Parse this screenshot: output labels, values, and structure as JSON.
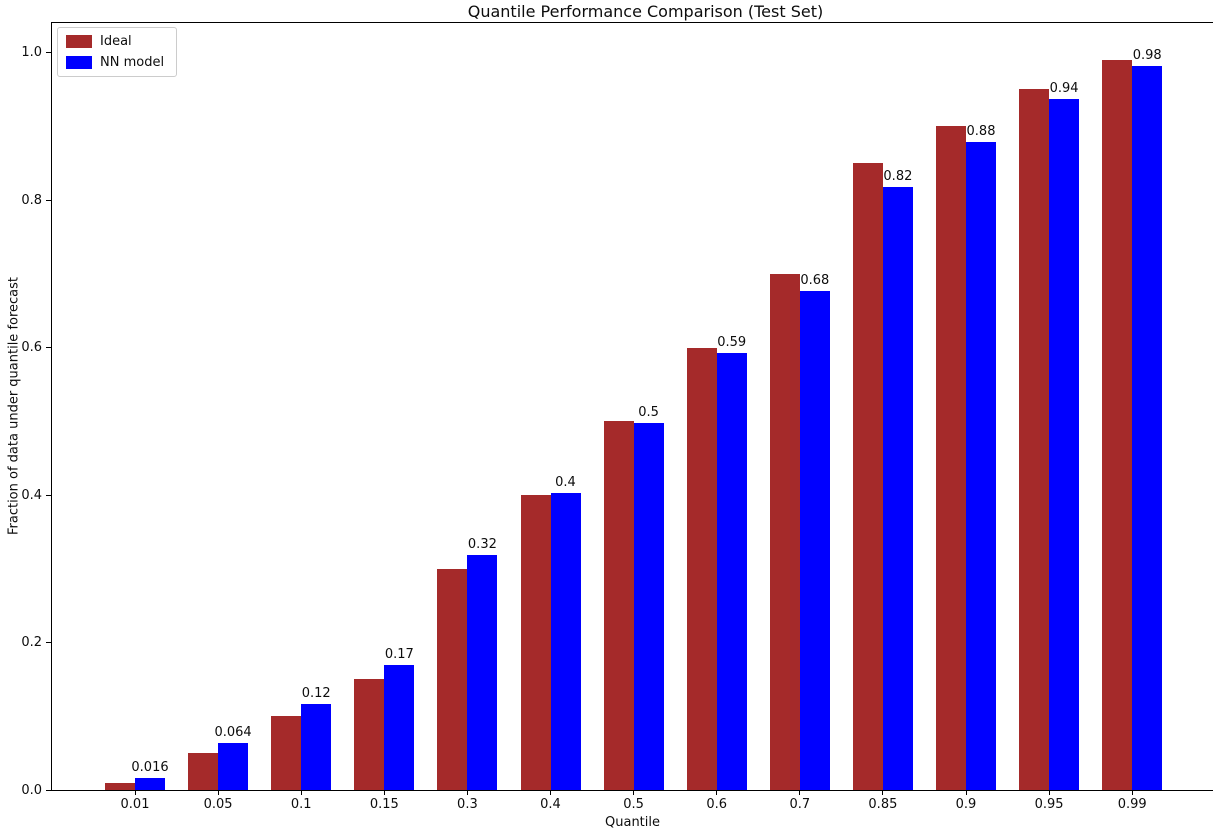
{
  "chart_data": {
    "type": "bar",
    "title": "Quantile Performance Comparison (Test Set)",
    "xlabel": "Quantile",
    "ylabel": "Fraction of data under quantile forecast",
    "categories": [
      "0.01",
      "0.05",
      "0.1",
      "0.15",
      "0.3",
      "0.4",
      "0.5",
      "0.6",
      "0.7",
      "0.85",
      "0.9",
      "0.95",
      "0.99"
    ],
    "series": [
      {
        "name": "Ideal",
        "color": "#a52a2a",
        "values": [
          0.01,
          0.05,
          0.1,
          0.15,
          0.3,
          0.4,
          0.5,
          0.6,
          0.7,
          0.85,
          0.9,
          0.95,
          0.99
        ]
      },
      {
        "name": "NN model",
        "color": "#0000ff",
        "values": [
          0.016,
          0.064,
          0.117,
          0.17,
          0.319,
          0.403,
          0.497,
          0.592,
          0.676,
          0.818,
          0.879,
          0.937,
          0.982
        ],
        "bar_labels": [
          "0.016",
          "0.064",
          "0.12",
          "0.17",
          "0.32",
          "0.4",
          "0.5",
          "0.59",
          "0.68",
          "0.82",
          "0.88",
          "0.94",
          "0.98"
        ]
      }
    ],
    "yticks": [
      "0.0",
      "0.2",
      "0.4",
      "0.6",
      "0.8",
      "1.0"
    ],
    "ylim": [
      0,
      1.04
    ],
    "grid": false,
    "legend_position": "upper left",
    "axis_color": "#000000",
    "background_color": "#ffffff"
  }
}
